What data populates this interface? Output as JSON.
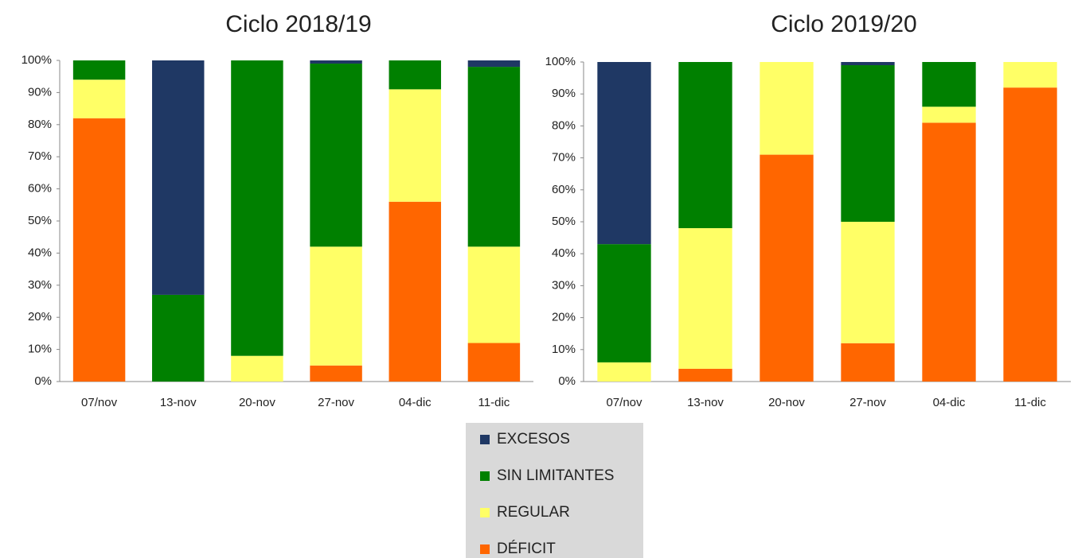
{
  "chart_data": [
    {
      "type": "stacked_bar",
      "title": "Ciclo 2018/19",
      "categories": [
        "07/nov",
        "13-nov",
        "20-nov",
        "27-nov",
        "04-dic",
        "11-dic"
      ],
      "series": [
        {
          "name": "DÉFICIT",
          "color": "#ff6600",
          "values": [
            82,
            0,
            0,
            5,
            56,
            12
          ]
        },
        {
          "name": "REGULAR",
          "color": "#ffff66",
          "values": [
            12,
            0,
            8,
            37,
            35,
            30
          ]
        },
        {
          "name": "SIN LIMITANTES",
          "color": "#008000",
          "values": [
            6,
            27,
            92,
            57,
            9,
            56
          ]
        },
        {
          "name": "EXCESOS",
          "color": "#1f3864",
          "values": [
            0,
            73,
            0,
            1,
            0,
            2
          ]
        }
      ],
      "ylim": [
        0,
        100
      ],
      "yticks": [
        {
          "value": 0,
          "label": "0%"
        },
        {
          "value": 10,
          "label": "10%"
        },
        {
          "value": 20,
          "label": "20%"
        },
        {
          "value": 30,
          "label": "30%"
        },
        {
          "value": 40,
          "label": "40%"
        },
        {
          "value": 50,
          "label": "50%"
        },
        {
          "value": 60,
          "label": "60%"
        },
        {
          "value": 70,
          "label": "70%"
        },
        {
          "value": 80,
          "label": "80%"
        },
        {
          "value": 90,
          "label": "90%"
        },
        {
          "value": 100,
          "label": "100%"
        }
      ]
    },
    {
      "type": "stacked_bar",
      "title": "Ciclo 2019/20",
      "categories": [
        "07/nov",
        "13-nov",
        "20-nov",
        "27-nov",
        "04-dic",
        "11-dic"
      ],
      "series": [
        {
          "values": [
            0,
            4,
            71,
            12,
            81,
            92
          ]
        },
        {
          "values": [
            6,
            44,
            29,
            38,
            5,
            8
          ]
        },
        {
          "values": [
            37,
            52,
            0,
            49,
            14,
            0
          ]
        },
        {
          "values": [
            57,
            0,
            0,
            1,
            0,
            0
          ]
        }
      ],
      "ylim": [
        0,
        100
      ],
      "yticks": [
        {
          "value": 0,
          "label": "0%"
        },
        {
          "value": 10,
          "label": "10%"
        },
        {
          "value": 20,
          "label": "20%"
        },
        {
          "value": 30,
          "label": "30%"
        },
        {
          "value": 40,
          "label": "40%"
        },
        {
          "value": 50,
          "label": "50%"
        },
        {
          "value": 60,
          "label": "60%"
        },
        {
          "value": 70,
          "label": "70%"
        },
        {
          "value": 80,
          "label": "80%"
        },
        {
          "value": 90,
          "label": "90%"
        },
        {
          "value": 100,
          "label": "100%"
        }
      ]
    }
  ]
}
